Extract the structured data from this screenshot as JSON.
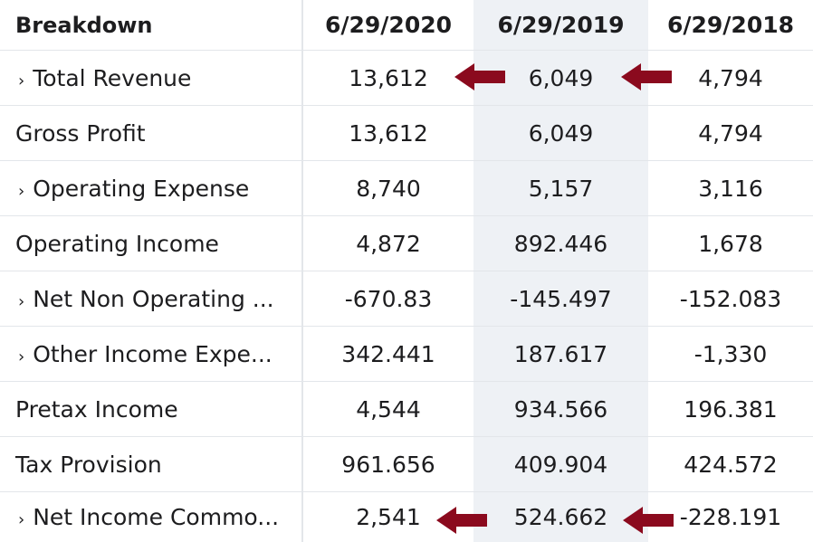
{
  "header": {
    "breakdown_label": "Breakdown",
    "columns": [
      "6/29/2020",
      "6/29/2019",
      "6/29/2018"
    ]
  },
  "rows": [
    {
      "label": "Total Revenue",
      "expandable": true,
      "values": [
        "13,612",
        "6,049",
        "4,794"
      ]
    },
    {
      "label": "Gross Profit",
      "expandable": false,
      "values": [
        "13,612",
        "6,049",
        "4,794"
      ]
    },
    {
      "label": "Operating Expense",
      "expandable": true,
      "values": [
        "8,740",
        "5,157",
        "3,116"
      ]
    },
    {
      "label": "Operating Income",
      "expandable": false,
      "values": [
        "4,872",
        "892.446",
        "1,678"
      ]
    },
    {
      "label": "Net Non Operating ...",
      "expandable": true,
      "values": [
        "-670.83",
        "-145.497",
        "-152.083"
      ]
    },
    {
      "label": "Other Income Expe...",
      "expandable": true,
      "values": [
        "342.441",
        "187.617",
        "-1,330"
      ]
    },
    {
      "label": "Pretax Income",
      "expandable": false,
      "values": [
        "4,544",
        "934.566",
        "196.381"
      ]
    },
    {
      "label": "Tax Provision",
      "expandable": false,
      "values": [
        "961.656",
        "409.904",
        "424.572"
      ]
    },
    {
      "label": "Net Income Commo...",
      "expandable": true,
      "values": [
        "2,541",
        "524.662",
        "-228.191"
      ]
    }
  ],
  "expand_glyph": "›",
  "colors": {
    "arrow": "#8b0a1e",
    "highlight_column": "#eef1f5",
    "divider": "#e3e6ea",
    "text": "#1d1d1f"
  },
  "annotations": {
    "arrow_icon": "left-arrow-icon"
  }
}
